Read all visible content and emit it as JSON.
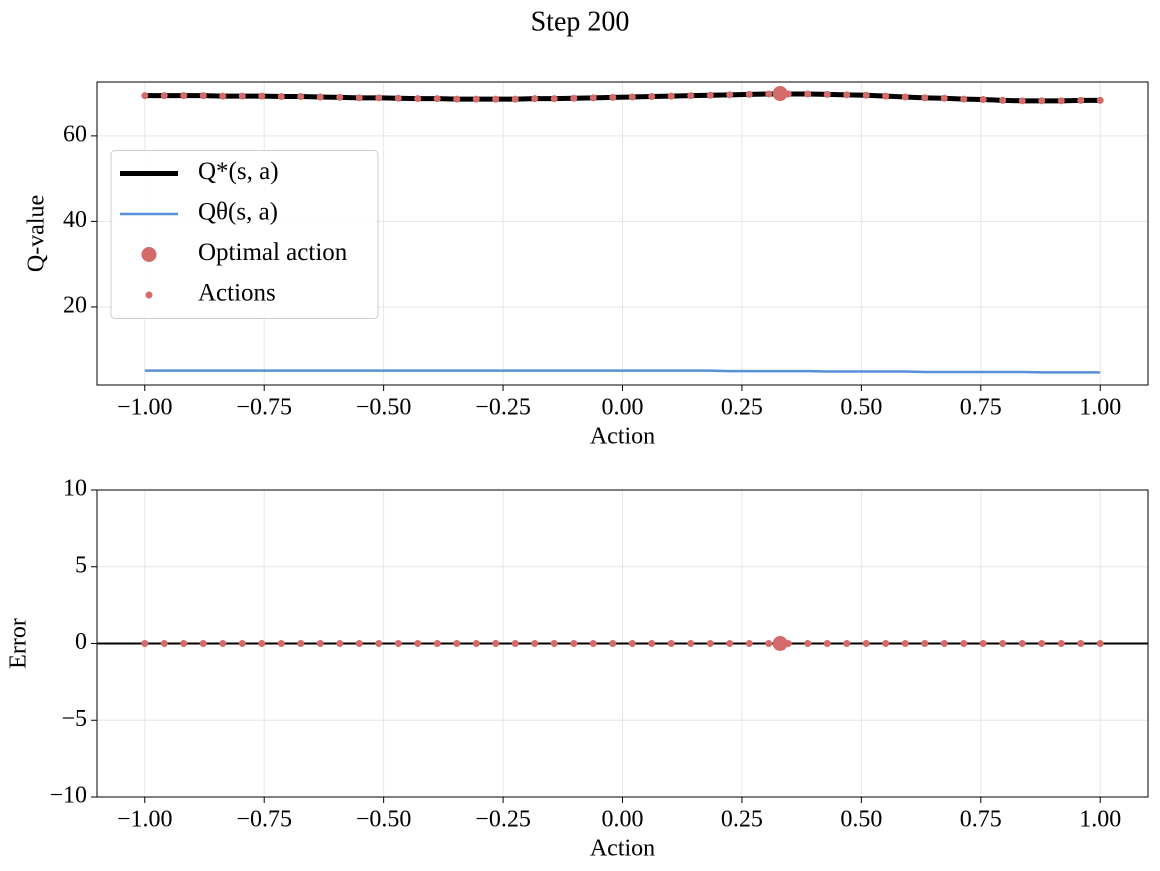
{
  "title": "Step 200",
  "chart_data": [
    {
      "type": "line",
      "xlabel": "Action",
      "ylabel": "Q-value",
      "x": [
        -1,
        -0.9592,
        -0.9184,
        -0.8776,
        -0.8367,
        -0.7959,
        -0.7551,
        -0.7143,
        -0.6735,
        -0.6327,
        -0.5918,
        -0.551,
        -0.5102,
        -0.4694,
        -0.4286,
        -0.3878,
        -0.3469,
        -0.3061,
        -0.2653,
        -0.2245,
        -0.1837,
        -0.1429,
        -0.102,
        -0.0612,
        -0.0204,
        0.0204,
        0.0612,
        0.102,
        0.1429,
        0.1837,
        0.2245,
        0.2653,
        0.3061,
        0.3469,
        0.3878,
        0.4286,
        0.4694,
        0.5102,
        0.551,
        0.5918,
        0.6327,
        0.6735,
        0.7143,
        0.7551,
        0.7959,
        0.8367,
        0.8776,
        0.9184,
        0.9592,
        1
      ],
      "series": [
        {
          "name": "Q*(s, a)",
          "type": "line",
          "color": "#000000",
          "linewidth": 5,
          "values": [
            69.4,
            69.4,
            69.4,
            69.4,
            69.3,
            69.3,
            69.3,
            69.2,
            69.2,
            69.1,
            69.0,
            68.9,
            68.9,
            68.8,
            68.7,
            68.7,
            68.6,
            68.6,
            68.6,
            68.6,
            68.7,
            68.7,
            68.8,
            68.9,
            69.0,
            69.1,
            69.2,
            69.3,
            69.4,
            69.5,
            69.6,
            69.7,
            69.8,
            69.8,
            69.8,
            69.7,
            69.6,
            69.5,
            69.3,
            69.1,
            68.9,
            68.8,
            68.6,
            68.5,
            68.3,
            68.2,
            68.2,
            68.2,
            68.3,
            68.3
          ]
        },
        {
          "name": "Qθ(s, a)",
          "type": "line",
          "color": "#5891d8",
          "linewidth": 2.5,
          "values": [
            5.1,
            5.1,
            5.1,
            5.1,
            5.1,
            5.1,
            5.1,
            5.1,
            5.1,
            5.1,
            5.1,
            5.1,
            5.1,
            5.1,
            5.1,
            5.1,
            5.1,
            5.1,
            5.1,
            5.1,
            5.1,
            5.1,
            5.1,
            5.1,
            5.1,
            5.1,
            5.1,
            5.1,
            5.1,
            5.1,
            5.0,
            5.0,
            5.0,
            5.0,
            5.0,
            4.9,
            4.9,
            4.9,
            4.9,
            4.9,
            4.8,
            4.8,
            4.8,
            4.8,
            4.8,
            4.8,
            4.7,
            4.7,
            4.7,
            4.7
          ]
        },
        {
          "name": "Optimal action",
          "type": "scatter",
          "color": "#d46a6a",
          "marker_size": 7.5,
          "x": [
            0.33
          ],
          "values": [
            69.9
          ]
        },
        {
          "name": "Actions",
          "type": "scatter",
          "color": "#d46a6a",
          "marker_size": 3.5,
          "values": [
            69.4,
            69.4,
            69.4,
            69.4,
            69.3,
            69.3,
            69.3,
            69.2,
            69.2,
            69.1,
            69.0,
            68.9,
            68.9,
            68.8,
            68.7,
            68.7,
            68.6,
            68.6,
            68.6,
            68.6,
            68.7,
            68.7,
            68.8,
            68.9,
            69.0,
            69.1,
            69.2,
            69.3,
            69.4,
            69.5,
            69.6,
            69.7,
            69.8,
            69.8,
            69.8,
            69.7,
            69.6,
            69.5,
            69.3,
            69.1,
            68.9,
            68.8,
            68.6,
            68.5,
            68.3,
            68.2,
            68.2,
            68.2,
            68.3,
            68.3
          ]
        }
      ],
      "xlim": [
        -1.1,
        1.1
      ],
      "ylim": [
        1.75,
        72.6
      ],
      "xticks": [
        {
          "value": -1,
          "label": "−1.00"
        },
        {
          "value": -0.75,
          "label": "−0.75"
        },
        {
          "value": -0.5,
          "label": "−0.50"
        },
        {
          "value": -0.25,
          "label": "−0.25"
        },
        {
          "value": 0,
          "label": "0.00"
        },
        {
          "value": 0.25,
          "label": "0.25"
        },
        {
          "value": 0.5,
          "label": "0.50"
        },
        {
          "value": 0.75,
          "label": "0.75"
        },
        {
          "value": 1,
          "label": "1.00"
        }
      ],
      "yticks": [
        20,
        40,
        60
      ],
      "grid": true,
      "legend": "center left"
    },
    {
      "type": "scatter",
      "xlabel": "Action",
      "ylabel": "Error",
      "x": [
        -1,
        -0.9592,
        -0.9184,
        -0.8776,
        -0.8367,
        -0.7959,
        -0.7551,
        -0.7143,
        -0.6735,
        -0.6327,
        -0.5918,
        -0.551,
        -0.5102,
        -0.4694,
        -0.4286,
        -0.3878,
        -0.3469,
        -0.3061,
        -0.2653,
        -0.2245,
        -0.1837,
        -0.1429,
        -0.102,
        -0.0612,
        -0.0204,
        0.0204,
        0.0612,
        0.102,
        0.1429,
        0.1837,
        0.2245,
        0.2653,
        0.3061,
        0.3469,
        0.3878,
        0.4286,
        0.4694,
        0.5102,
        0.551,
        0.5918,
        0.6327,
        0.6735,
        0.7143,
        0.7551,
        0.7959,
        0.8367,
        0.8776,
        0.9184,
        0.9592,
        1
      ],
      "hlines": [
        0
      ],
      "series": [
        {
          "type": "scatter",
          "color": "#d46a6a",
          "marker_size": 3.5,
          "values": [
            0,
            0,
            0,
            0,
            0,
            0,
            0,
            0,
            0,
            0,
            0,
            0,
            0,
            0,
            0,
            0,
            0,
            0,
            0,
            0,
            0,
            0,
            0,
            0,
            0,
            0,
            0,
            0,
            0,
            0,
            0,
            0,
            0,
            0,
            0,
            0,
            0,
            0,
            0,
            0,
            0,
            0,
            0,
            0,
            0,
            0,
            0,
            0,
            0,
            0
          ]
        },
        {
          "type": "scatter",
          "color": "#d46a6a",
          "marker_size": 7.5,
          "x": [
            0.33
          ],
          "values": [
            0
          ]
        }
      ],
      "xlim": [
        -1.1,
        1.1
      ],
      "ylim": [
        -10,
        10
      ],
      "xticks": [
        {
          "value": -1,
          "label": "−1.00"
        },
        {
          "value": -0.75,
          "label": "−0.75"
        },
        {
          "value": -0.5,
          "label": "−0.50"
        },
        {
          "value": -0.25,
          "label": "−0.25"
        },
        {
          "value": 0,
          "label": "0.00"
        },
        {
          "value": 0.25,
          "label": "0.25"
        },
        {
          "value": 0.5,
          "label": "0.50"
        },
        {
          "value": 0.75,
          "label": "0.75"
        },
        {
          "value": 1,
          "label": "1.00"
        }
      ],
      "yticks": [
        {
          "value": -10,
          "label": "−10"
        },
        {
          "value": -5,
          "label": "−5"
        },
        0,
        5,
        10
      ],
      "grid": true
    }
  ]
}
